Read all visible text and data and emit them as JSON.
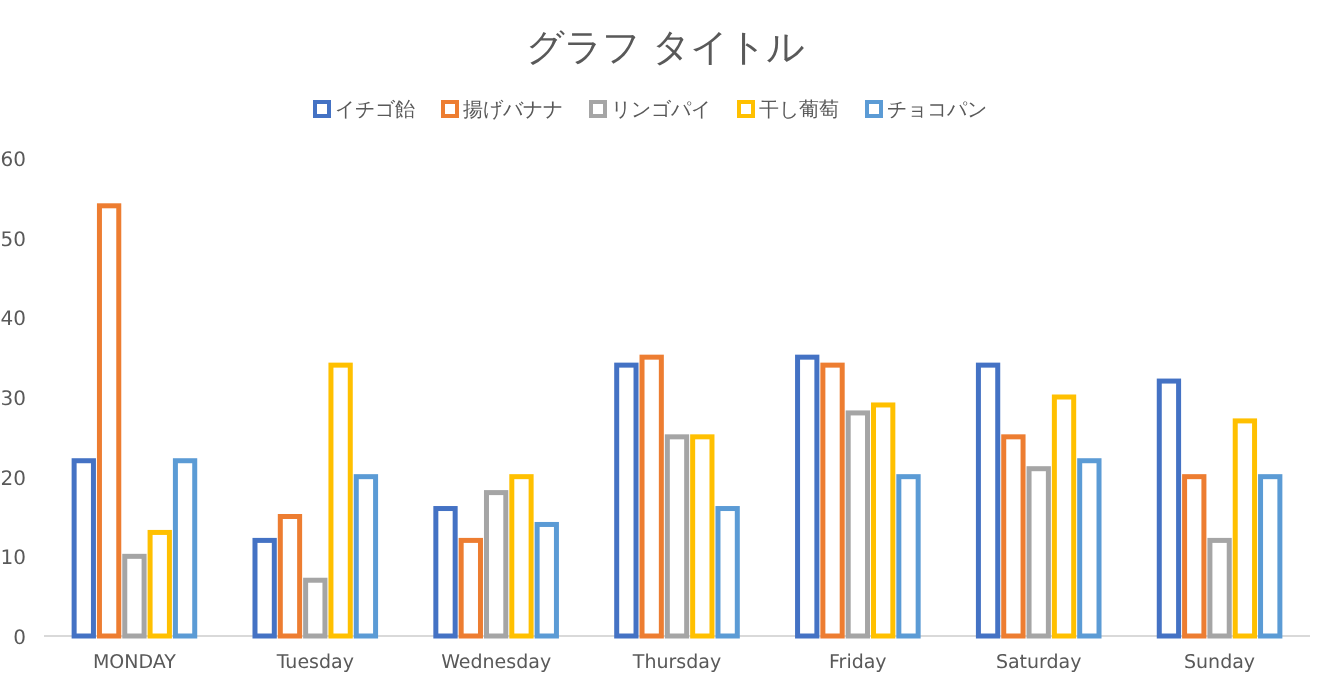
{
  "chart_data": {
    "type": "bar",
    "title": "グラフ タイトル",
    "categories": [
      "MONDAY",
      "Tuesday",
      "Wednesday",
      "Thursday",
      "Friday",
      "Saturday",
      "Sunday"
    ],
    "series": [
      {
        "name": "イチゴ飴",
        "color": "#4472c4",
        "values": [
          22,
          12,
          16,
          34,
          35,
          34,
          32
        ]
      },
      {
        "name": "揚げバナナ",
        "color": "#ed7d31",
        "values": [
          54,
          15,
          12,
          35,
          34,
          25,
          20
        ]
      },
      {
        "name": "リンゴパイ",
        "color": "#a5a5a5",
        "values": [
          10,
          7,
          18,
          25,
          28,
          21,
          12
        ]
      },
      {
        "name": "干し葡萄",
        "color": "#ffc000",
        "values": [
          13,
          34,
          20,
          25,
          29,
          30,
          27
        ]
      },
      {
        "name": "チョコパン",
        "color": "#5b9bd5",
        "values": [
          22,
          20,
          14,
          16,
          20,
          22,
          20
        ]
      }
    ],
    "ylim": [
      0,
      60
    ],
    "yticks": [
      0,
      10,
      20,
      30,
      40,
      50,
      60
    ],
    "legend": "top"
  }
}
